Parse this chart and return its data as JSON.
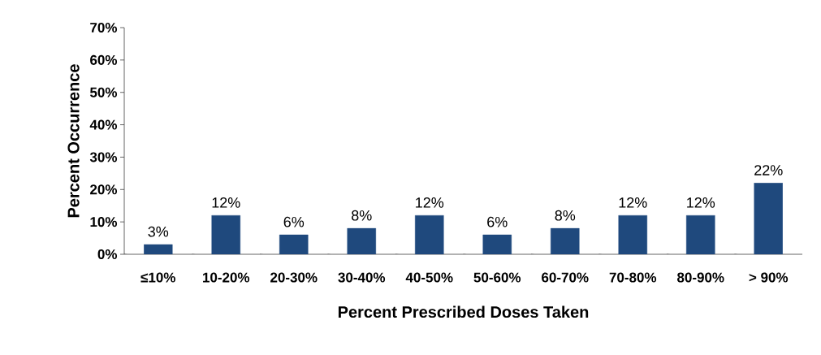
{
  "chart_data": {
    "type": "bar",
    "xlabel": "Percent Prescribed Doses Taken",
    "ylabel": "Percent Occurrence",
    "categories": [
      "≤10%",
      "10-20%",
      "20-30%",
      "30-40%",
      "40-50%",
      "50-60%",
      "60-70%",
      "70-80%",
      "80-90%",
      "> 90%"
    ],
    "values": [
      3,
      12,
      6,
      8,
      12,
      6,
      8,
      12,
      12,
      22
    ],
    "value_labels": [
      "3%",
      "12%",
      "6%",
      "8%",
      "12%",
      "6%",
      "8%",
      "12%",
      "12%",
      "22%"
    ],
    "color": "#1f497d",
    "ylim": [
      0,
      70
    ],
    "yticks": [
      {
        "value": 0,
        "label": "0%"
      },
      {
        "value": 10,
        "label": "10%"
      },
      {
        "value": 20,
        "label": "20%"
      },
      {
        "value": 30,
        "label": "30%"
      },
      {
        "value": 40,
        "label": "40%"
      },
      {
        "value": 50,
        "label": "50%"
      },
      {
        "value": 60,
        "label": "60%"
      },
      {
        "value": 70,
        "label": "70%"
      }
    ],
    "grid": false
  }
}
